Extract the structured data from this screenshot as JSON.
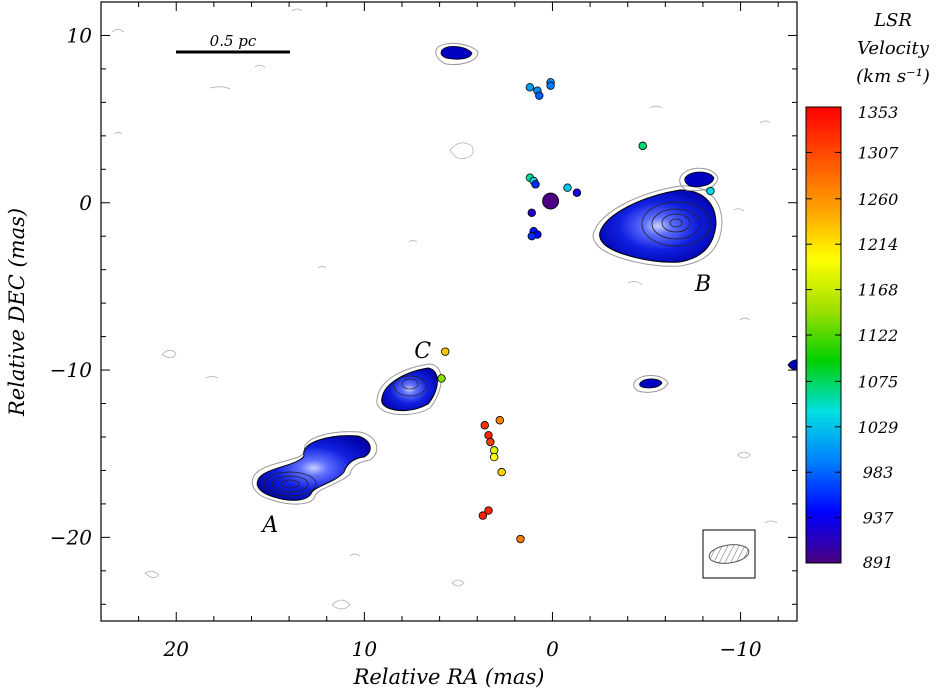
{
  "chart_data": {
    "type": "scatter",
    "xlabel": "Relative RA (mas)",
    "ylabel": "Relative DEC (mas)",
    "xlim": [
      24,
      -13
    ],
    "ylim": [
      -25,
      12
    ],
    "x_ticks": [
      20,
      10,
      0,
      -10
    ],
    "y_ticks": [
      10,
      0,
      -10,
      -20
    ],
    "x_tick_labels": [
      "20",
      "10",
      "0",
      "−10"
    ],
    "y_tick_labels": [
      "10",
      "0",
      "−10",
      "−20"
    ],
    "grid": false,
    "scale_bar_label": "0.5 pc",
    "colorbar": {
      "title_lines": [
        "LSR",
        "Velocity",
        "(km s⁻¹)"
      ],
      "tick_values": [
        1353,
        1307,
        1260,
        1214,
        1168,
        1122,
        1075,
        1029,
        983,
        937,
        891
      ],
      "range": [
        891,
        1353
      ],
      "colors": [
        "#4a0080",
        "#0000ff",
        "#0080ff",
        "#00e0e0",
        "#00d000",
        "#a0e000",
        "#ffff00",
        "#ffa000",
        "#ff5000",
        "#ff0000"
      ]
    },
    "continuum_sources": [
      {
        "label": "A",
        "x": 13.9,
        "y": -16.8,
        "label_x": 15.0,
        "label_y": -19.2
      },
      {
        "label": "B",
        "x": -6.7,
        "y": -1.3,
        "label_x": -8.0,
        "label_y": -4.8
      },
      {
        "label": "C",
        "x": 7.5,
        "y": -11.0,
        "label_x": 6.9,
        "label_y": -8.8
      }
    ],
    "maser_spots": [
      {
        "x": 5.7,
        "y": -8.9,
        "v": 1230
      },
      {
        "x": 5.9,
        "y": -10.5,
        "v": 1140
      },
      {
        "x": 3.6,
        "y": -13.3,
        "v": 1320
      },
      {
        "x": 3.4,
        "y": -13.9,
        "v": 1330
      },
      {
        "x": 3.3,
        "y": -14.3,
        "v": 1315
      },
      {
        "x": 2.8,
        "y": -13.0,
        "v": 1270
      },
      {
        "x": 3.1,
        "y": -14.8,
        "v": 1180
      },
      {
        "x": 3.1,
        "y": -15.2,
        "v": 1200
      },
      {
        "x": 2.7,
        "y": -16.1,
        "v": 1225
      },
      {
        "x": 3.7,
        "y": -18.7,
        "v": 1330
      },
      {
        "x": 3.4,
        "y": -18.4,
        "v": 1330
      },
      {
        "x": 1.7,
        "y": -20.1,
        "v": 1275
      },
      {
        "x": 1.2,
        "y": 6.9,
        "v": 1010
      },
      {
        "x": 0.8,
        "y": 6.7,
        "v": 1000
      },
      {
        "x": 0.7,
        "y": 6.4,
        "v": 980
      },
      {
        "x": 0.1,
        "y": 7.2,
        "v": 1005
      },
      {
        "x": 0.1,
        "y": 7.0,
        "v": 990
      },
      {
        "x": 1.2,
        "y": 1.5,
        "v": 1060
      },
      {
        "x": 1.0,
        "y": 1.3,
        "v": 1040
      },
      {
        "x": 0.9,
        "y": 1.1,
        "v": 960
      },
      {
        "x": -0.8,
        "y": 0.9,
        "v": 1030
      },
      {
        "x": -1.3,
        "y": 0.6,
        "v": 930
      },
      {
        "x": 0.1,
        "y": 0.1,
        "v": 891
      },
      {
        "x": 1.1,
        "y": -0.6,
        "v": 920
      },
      {
        "x": 1.0,
        "y": -1.7,
        "v": 950
      },
      {
        "x": 0.8,
        "y": -1.9,
        "v": 940
      },
      {
        "x": 1.1,
        "y": -2.0,
        "v": 960
      },
      {
        "x": -4.8,
        "y": 3.4,
        "v": 1070
      },
      {
        "x": -8.4,
        "y": 0.7,
        "v": 1040
      }
    ]
  }
}
